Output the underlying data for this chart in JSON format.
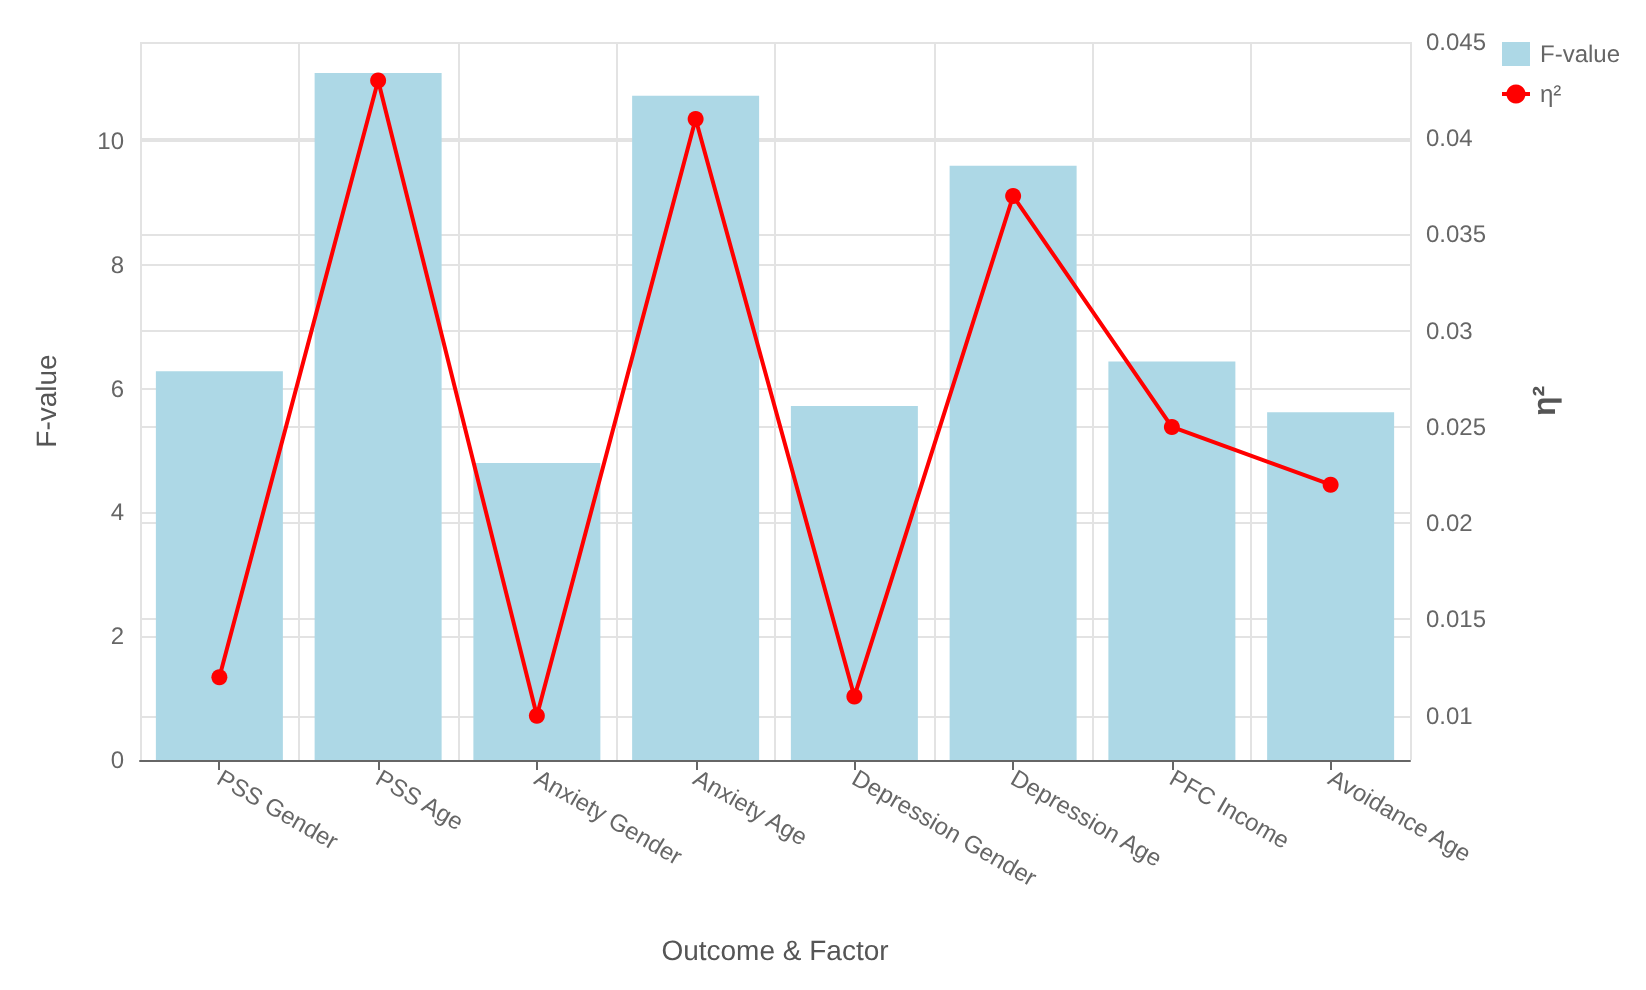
{
  "chart_data": {
    "type": "bar",
    "xlabel": "Outcome & Factor",
    "ylabel": "F-value",
    "y2label": "η²",
    "categories": [
      "PSS Gender",
      "PSS Age",
      "Anxiety Gender",
      "Anxiety Age",
      "Depression Gender",
      "Depression Age",
      "PFC Income",
      "Avoidance Age"
    ],
    "series": [
      {
        "name": "F-value",
        "color": "#add8e6",
        "values": [
          6.28,
          11.1,
          4.8,
          10.73,
          5.72,
          9.6,
          6.44,
          5.62
        ]
      },
      {
        "name": "η²",
        "type": "line",
        "axis": "y2",
        "color": "#ff0000",
        "marker": "circle",
        "values": [
          0.012,
          0.043,
          0.01,
          0.041,
          0.011,
          0.037,
          0.025,
          0.022
        ]
      }
    ],
    "ylim": [
      0,
      11.6
    ],
    "yticks": [
      0,
      2,
      4,
      6,
      8,
      10
    ],
    "y2lim": [
      0.0077,
      0.045
    ],
    "y2ticks": [
      0.01,
      0.015,
      0.02,
      0.025,
      0.03,
      0.035,
      0.04,
      0.045
    ],
    "grid": true,
    "legend": "top right"
  }
}
